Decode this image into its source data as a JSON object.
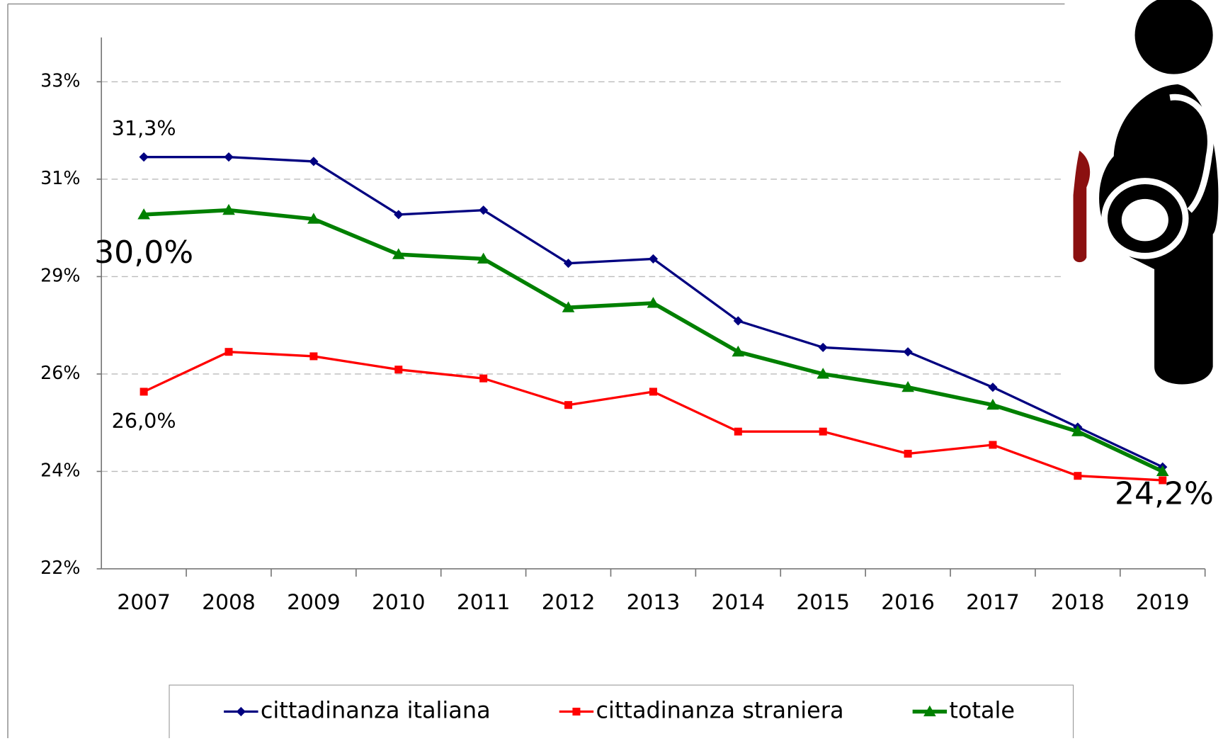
{
  "chart_data": {
    "type": "line",
    "categories": [
      "2007",
      "2008",
      "2009",
      "2010",
      "2011",
      "2012",
      "2013",
      "2014",
      "2015",
      "2016",
      "2017",
      "2018",
      "2019"
    ],
    "series": [
      {
        "name": "cittadinanza italiana",
        "color": "#000080",
        "marker": "diamond",
        "values": [
          31.3,
          31.3,
          31.2,
          30.0,
          30.1,
          28.9,
          29.0,
          27.6,
          27.0,
          26.9,
          26.1,
          25.2,
          24.3
        ],
        "value_labels": [
          "31,3%",
          null,
          null,
          null,
          null,
          null,
          null,
          null,
          null,
          null,
          null,
          null,
          null
        ]
      },
      {
        "name": "cittadinanza straniera",
        "color": "#ff0000",
        "marker": "square",
        "values": [
          26.0,
          26.9,
          26.8,
          26.5,
          26.3,
          25.7,
          26.0,
          25.1,
          25.1,
          24.6,
          24.8,
          24.1,
          24.0
        ],
        "value_labels": [
          "26,0%",
          null,
          null,
          null,
          null,
          null,
          null,
          null,
          null,
          null,
          null,
          null,
          null
        ]
      },
      {
        "name": "totale",
        "color": "#008000",
        "marker": "triangle",
        "values": [
          30.0,
          30.1,
          29.9,
          29.1,
          29.0,
          27.9,
          28.0,
          26.9,
          26.4,
          26.1,
          25.7,
          25.1,
          24.2
        ],
        "value_labels": [
          "30,0%",
          null,
          null,
          null,
          null,
          null,
          null,
          null,
          null,
          null,
          null,
          null,
          "24,2%"
        ]
      }
    ],
    "ylim": [
      22,
      34
    ],
    "yticks": [
      {
        "value": 22.0,
        "label": "22%"
      },
      {
        "value": 24.2,
        "label": "24%"
      },
      {
        "value": 26.4,
        "label": "26%"
      },
      {
        "value": 28.6,
        "label": "29%"
      },
      {
        "value": 30.8,
        "label": "31%"
      },
      {
        "value": 33.0,
        "label": "33%"
      }
    ],
    "grid": true,
    "legend": "bottom"
  }
}
